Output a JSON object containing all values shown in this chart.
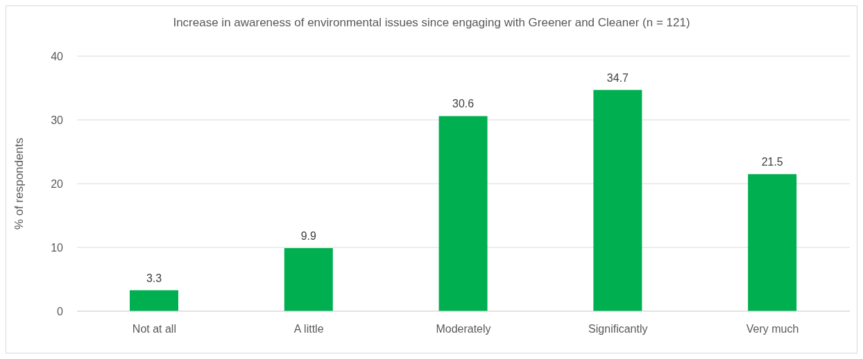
{
  "chart_data": {
    "type": "bar",
    "title": "Increase in awareness of environmental issues since engaging with Greener and Cleaner (n = 121)",
    "ylabel": "% of respondents",
    "categories": [
      "Not at all",
      "A little",
      "Moderately",
      "Significantly",
      "Very much"
    ],
    "values": [
      3.3,
      9.9,
      30.6,
      34.7,
      21.5
    ],
    "color": "#00b050",
    "ylim": [
      0,
      40
    ],
    "yticks": [
      0,
      10,
      20,
      30,
      40
    ],
    "grid": "y",
    "data_labels": true
  }
}
